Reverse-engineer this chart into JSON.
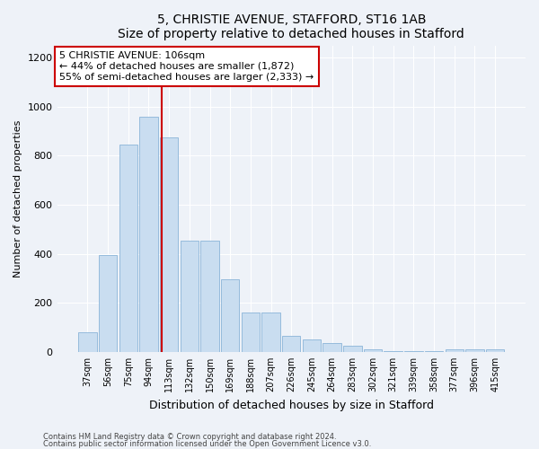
{
  "title1": "5, CHRISTIE AVENUE, STAFFORD, ST16 1AB",
  "title2": "Size of property relative to detached houses in Stafford",
  "xlabel": "Distribution of detached houses by size in Stafford",
  "ylabel": "Number of detached properties",
  "categories": [
    "37sqm",
    "56sqm",
    "75sqm",
    "94sqm",
    "113sqm",
    "132sqm",
    "150sqm",
    "169sqm",
    "188sqm",
    "207sqm",
    "226sqm",
    "245sqm",
    "264sqm",
    "283sqm",
    "302sqm",
    "321sqm",
    "339sqm",
    "358sqm",
    "377sqm",
    "396sqm",
    "415sqm"
  ],
  "values": [
    80,
    395,
    845,
    960,
    875,
    455,
    455,
    295,
    160,
    160,
    65,
    50,
    35,
    25,
    10,
    5,
    5,
    5,
    10,
    10,
    10
  ],
  "bar_color": "#c9ddf0",
  "bar_edge_color": "#8ab4d8",
  "vline_color": "#cc0000",
  "annotation_text": "5 CHRISTIE AVENUE: 106sqm\n← 44% of detached houses are smaller (1,872)\n55% of semi-detached houses are larger (2,333) →",
  "annotation_box_color": "#ffffff",
  "annotation_box_edge": "#cc0000",
  "ylim": [
    0,
    1250
  ],
  "yticks": [
    0,
    200,
    400,
    600,
    800,
    1000,
    1200
  ],
  "footer1": "Contains HM Land Registry data © Crown copyright and database right 2024.",
  "footer2": "Contains public sector information licensed under the Open Government Licence v3.0.",
  "bg_color": "#eef2f8",
  "plot_bg_color": "#eef2f8"
}
